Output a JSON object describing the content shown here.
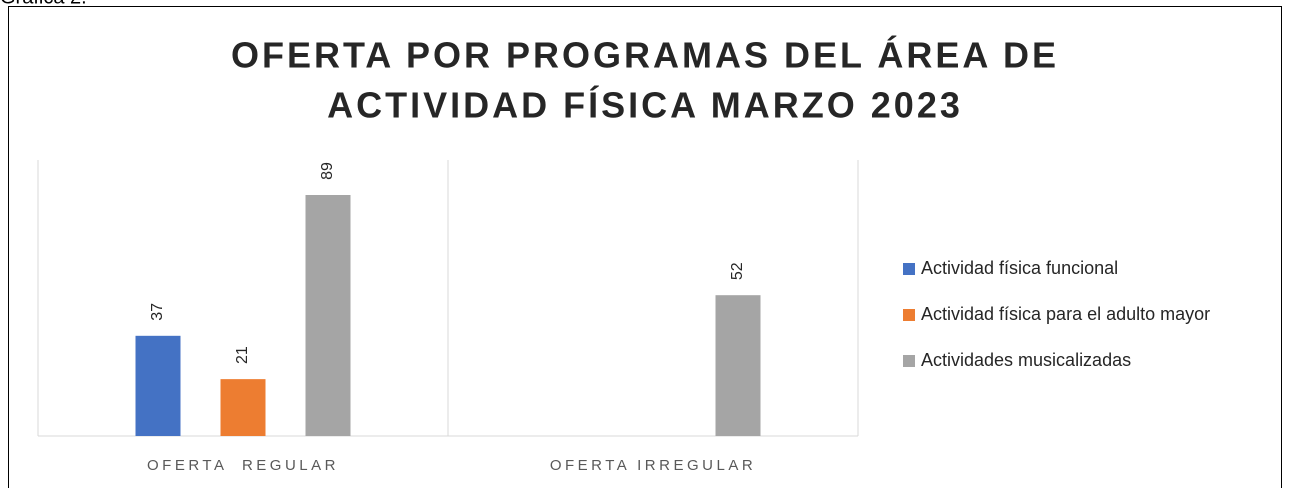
{
  "caption": "Gráfica 2.",
  "chart_data": {
    "type": "bar",
    "title": [
      "OFERTA POR PROGRAMAS DEL ÁREA DE",
      "ACTIVIDAD FÍSICA MARZO 2023"
    ],
    "categories": [
      "OFERTA  REGULAR",
      "OFERTA IRREGULAR"
    ],
    "series": [
      {
        "name": "Actividad física funcional",
        "color": "#4472c4",
        "values": [
          37,
          null
        ]
      },
      {
        "name": "Actividad física para el adulto mayor",
        "color": "#ed7d31",
        "values": [
          21,
          null
        ]
      },
      {
        "name": "Actividades musicalizadas",
        "color": "#a5a5a5",
        "values": [
          89,
          52
        ]
      }
    ],
    "legend": "right"
  }
}
